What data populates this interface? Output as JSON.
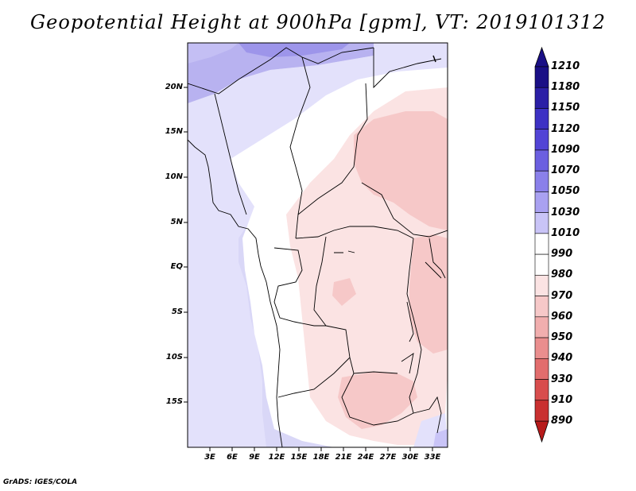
{
  "title": "Geopotential Height at 900hPa [gpm], VT: 2019101312",
  "footer": "GrADS: IGES/COLA",
  "map": {
    "lat_labels": [
      "20N",
      "15N",
      "10N",
      "5N",
      "EQ",
      "5S",
      "10S",
      "15S"
    ],
    "lon_labels": [
      "3E",
      "6E",
      "9E",
      "12E",
      "15E",
      "18E",
      "21E",
      "24E",
      "27E",
      "30E",
      "33E"
    ]
  },
  "colorbar": {
    "labels": [
      "1210",
      "1180",
      "1150",
      "1120",
      "1090",
      "1070",
      "1050",
      "1030",
      "1010",
      "990",
      "980",
      "970",
      "960",
      "950",
      "940",
      "930",
      "910",
      "890"
    ],
    "colors": [
      "#1a0f86",
      "#2b1fa6",
      "#3d31c4",
      "#5244d6",
      "#6b5fe0",
      "#8a80ea",
      "#a9a1f1",
      "#c9c4f7",
      "#e2e0fb",
      "#ffffff",
      "#fbe3e3",
      "#f6c8c8",
      "#f1aeae",
      "#ea8e8e",
      "#e26d6d",
      "#d84d4d",
      "#c93030",
      "#b71a1a"
    ]
  }
}
